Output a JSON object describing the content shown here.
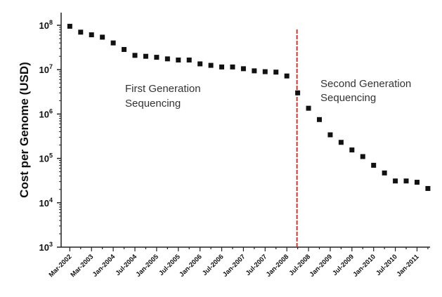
{
  "chart_data": {
    "type": "scatter",
    "ylabel": "Cost per Genome (USD)",
    "xlabel": "",
    "yscale": "log",
    "ylim": [
      1000,
      100000000
    ],
    "y_ticks": [
      {
        "base": "10",
        "exp": "3",
        "value": 1000
      },
      {
        "base": "10",
        "exp": "4",
        "value": 10000
      },
      {
        "base": "10",
        "exp": "5",
        "value": 100000
      },
      {
        "base": "10",
        "exp": "6",
        "value": 1000000
      },
      {
        "base": "10",
        "exp": "7",
        "value": 10000000
      },
      {
        "base": "10",
        "exp": "8",
        "value": 100000000
      }
    ],
    "x_tick_labels": [
      "Mar-2002",
      "Mar-2003",
      "Jan-2004",
      "Jul-2004",
      "Jan-2005",
      "Jul-2005",
      "Jan-2006",
      "Jul-2006",
      "Jan-2007",
      "Jul-2007",
      "Jan-2008",
      "Jul-2008",
      "Jan-2009",
      "Jul-2009",
      "Jan-2010",
      "Jul-2010",
      "Jan-2011"
    ],
    "x_tick_positions": [
      1,
      3,
      5,
      7,
      9,
      11,
      13,
      15,
      17,
      19,
      21,
      23,
      25,
      27,
      29,
      31,
      33
    ],
    "xlim": [
      0.2,
      34.2
    ],
    "points": [
      {
        "x": 1,
        "y": 95000000
      },
      {
        "x": 2,
        "y": 70000000
      },
      {
        "x": 3,
        "y": 61000000
      },
      {
        "x": 4,
        "y": 54000000
      },
      {
        "x": 5,
        "y": 40000000
      },
      {
        "x": 6,
        "y": 28500000
      },
      {
        "x": 7,
        "y": 21000000
      },
      {
        "x": 8,
        "y": 20000000
      },
      {
        "x": 9,
        "y": 19000000
      },
      {
        "x": 10,
        "y": 17500000
      },
      {
        "x": 11,
        "y": 16500000
      },
      {
        "x": 12,
        "y": 16500000
      },
      {
        "x": 13,
        "y": 13500000
      },
      {
        "x": 14,
        "y": 12500000
      },
      {
        "x": 15,
        "y": 11500000
      },
      {
        "x": 16,
        "y": 11500000
      },
      {
        "x": 17,
        "y": 10500000
      },
      {
        "x": 18,
        "y": 9400000
      },
      {
        "x": 19,
        "y": 9000000
      },
      {
        "x": 20,
        "y": 8800000
      },
      {
        "x": 21,
        "y": 7200000
      },
      {
        "x": 22,
        "y": 3000000
      },
      {
        "x": 23,
        "y": 1350000
      },
      {
        "x": 24,
        "y": 750000
      },
      {
        "x": 25,
        "y": 340000
      },
      {
        "x": 26,
        "y": 230000
      },
      {
        "x": 27,
        "y": 155000
      },
      {
        "x": 28,
        "y": 110000
      },
      {
        "x": 29,
        "y": 70000
      },
      {
        "x": 30,
        "y": 47000
      },
      {
        "x": 31,
        "y": 31000
      },
      {
        "x": 32,
        "y": 31000
      },
      {
        "x": 33,
        "y": 29000
      },
      {
        "x": 34,
        "y": 21000
      }
    ],
    "divider_x": 22,
    "divider_color": "#d9322a",
    "marker_color": "#111111",
    "annotations": [
      {
        "lines": [
          "First Generation",
          "Sequencing"
        ]
      },
      {
        "lines": [
          "Second Generation",
          "Sequencing"
        ]
      }
    ],
    "grid": false
  }
}
